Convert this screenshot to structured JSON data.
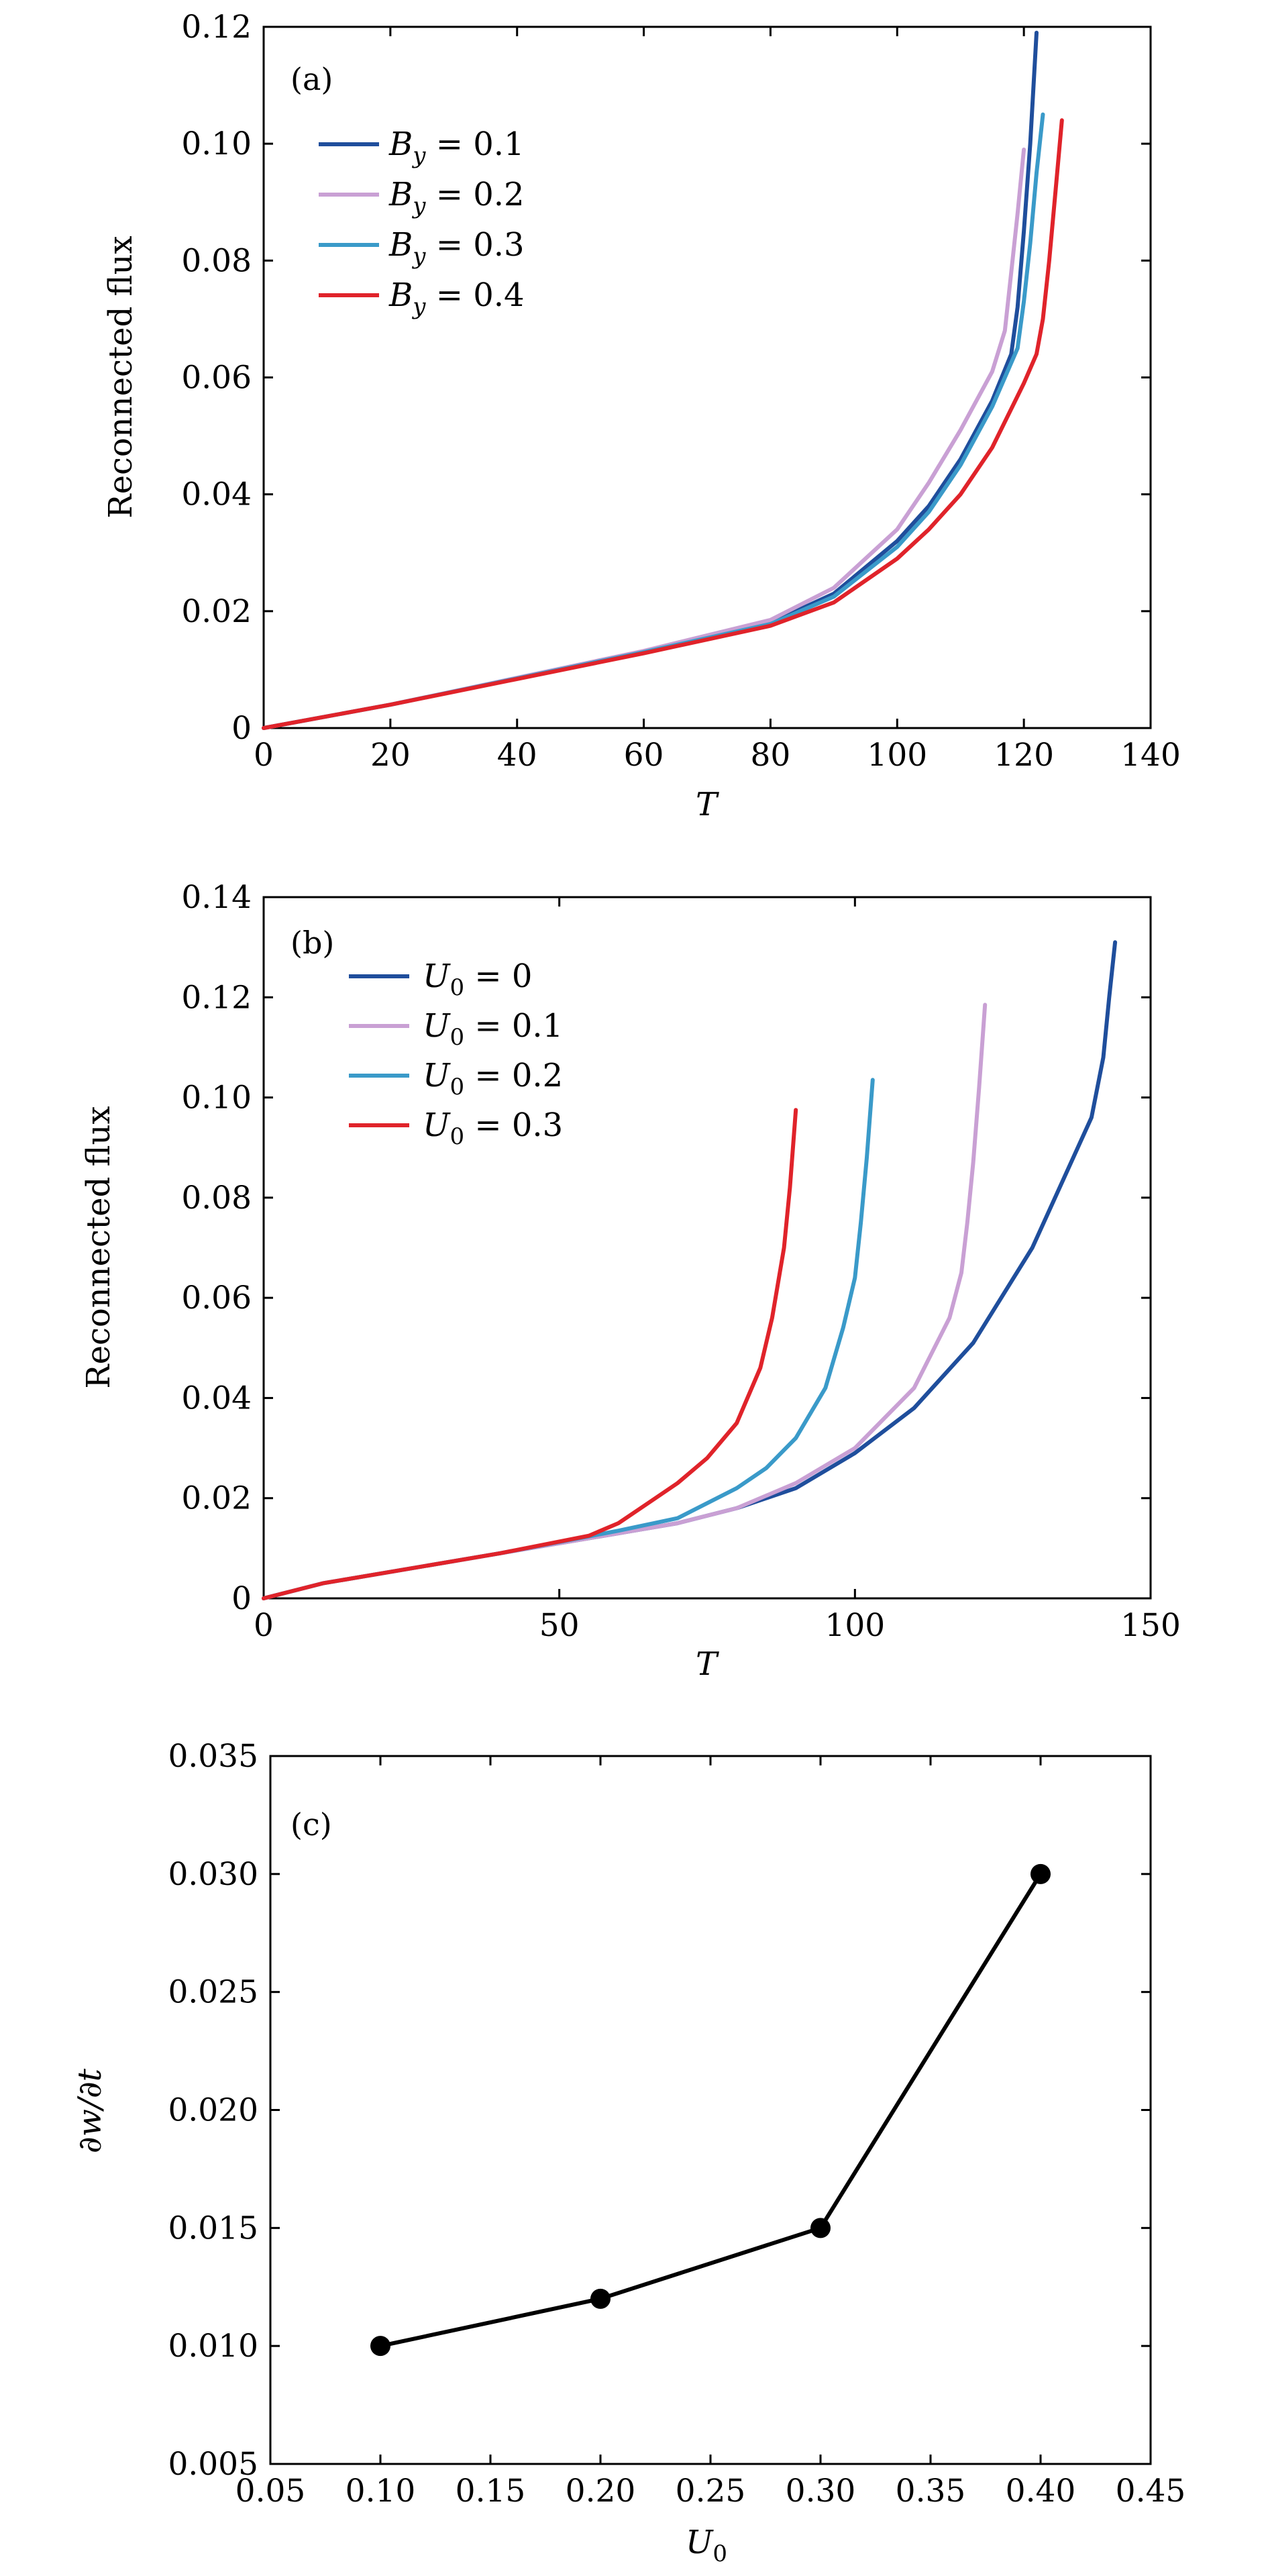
{
  "chart_data": [
    {
      "panel": "(a)",
      "type": "line",
      "xlabel": "T",
      "ylabel": "Reconnected flux",
      "xlim": [
        0,
        140
      ],
      "ylim": [
        0,
        0.12
      ],
      "xticks": [
        "0",
        "20",
        "40",
        "60",
        "80",
        "100",
        "120",
        "140"
      ],
      "yticks": [
        "0",
        "0.02",
        "0.04",
        "0.06",
        "0.08",
        "0.10",
        "0.12"
      ],
      "legend_position": "top-left",
      "series": [
        {
          "name": "B_y = 0.1",
          "label_main": "B",
          "label_sub": "y",
          "label_rest": " = 0.1",
          "color": "#1f4e9c",
          "x": [
            0,
            20,
            40,
            60,
            80,
            90,
            100,
            105,
            110,
            115,
            118,
            119,
            120,
            121,
            122
          ],
          "y": [
            0,
            0.004,
            0.0085,
            0.013,
            0.018,
            0.023,
            0.032,
            0.038,
            0.046,
            0.056,
            0.064,
            0.072,
            0.085,
            0.1,
            0.119
          ]
        },
        {
          "name": "B_y = 0.2",
          "label_main": "B",
          "label_sub": "y",
          "label_rest": " = 0.2",
          "color": "#c9a0d4",
          "x": [
            0,
            20,
            40,
            60,
            80,
            90,
            100,
            105,
            110,
            115,
            117,
            118,
            119,
            120
          ],
          "y": [
            0,
            0.004,
            0.0086,
            0.0132,
            0.0185,
            0.024,
            0.034,
            0.042,
            0.051,
            0.061,
            0.068,
            0.078,
            0.088,
            0.099
          ]
        },
        {
          "name": "B_y = 0.3",
          "label_main": "B",
          "label_sub": "y",
          "label_rest": " = 0.3",
          "color": "#3a9ac9",
          "x": [
            0,
            20,
            40,
            60,
            80,
            90,
            100,
            105,
            110,
            115,
            119,
            120,
            121,
            122,
            123
          ],
          "y": [
            0,
            0.004,
            0.0085,
            0.013,
            0.0178,
            0.0225,
            0.031,
            0.037,
            0.045,
            0.055,
            0.065,
            0.073,
            0.083,
            0.095,
            0.105
          ]
        },
        {
          "name": "B_y = 0.4",
          "label_main": "B",
          "label_sub": "y",
          "label_rest": " = 0.4",
          "color": "#e0232a",
          "x": [
            0,
            20,
            40,
            60,
            80,
            90,
            100,
            105,
            110,
            115,
            120,
            122,
            123,
            124,
            125,
            126
          ],
          "y": [
            0,
            0.004,
            0.0084,
            0.0128,
            0.0175,
            0.0215,
            0.029,
            0.034,
            0.04,
            0.048,
            0.059,
            0.064,
            0.07,
            0.08,
            0.092,
            0.104
          ]
        }
      ]
    },
    {
      "panel": "(b)",
      "type": "line",
      "xlabel": "T",
      "ylabel": "Reconnected flux",
      "xlim": [
        0,
        150
      ],
      "ylim": [
        0,
        0.14
      ],
      "xticks": [
        "0",
        "50",
        "100",
        "150"
      ],
      "yticks": [
        "0",
        "0.02",
        "0.04",
        "0.06",
        "0.08",
        "0.10",
        "0.12",
        "0.14"
      ],
      "legend_position": "top-left",
      "series": [
        {
          "name": "U_0 = 0",
          "label_main": "U",
          "label_sub": "0",
          "label_rest": " = 0",
          "color": "#1f4e9c",
          "x": [
            0,
            10,
            20,
            40,
            60,
            70,
            80,
            90,
            100,
            110,
            120,
            130,
            140,
            142,
            143,
            144
          ],
          "y": [
            0,
            0.003,
            0.005,
            0.009,
            0.013,
            0.015,
            0.018,
            0.022,
            0.029,
            0.038,
            0.051,
            0.07,
            0.096,
            0.108,
            0.12,
            0.131
          ]
        },
        {
          "name": "U_0 = 0.1",
          "label_main": "U",
          "label_sub": "0",
          "label_rest": " = 0.1",
          "color": "#c9a0d4",
          "x": [
            0,
            10,
            20,
            40,
            60,
            70,
            80,
            90,
            100,
            110,
            116,
            118,
            119,
            120,
            121,
            122
          ],
          "y": [
            0,
            0.003,
            0.005,
            0.009,
            0.013,
            0.015,
            0.018,
            0.023,
            0.03,
            0.042,
            0.056,
            0.065,
            0.075,
            0.087,
            0.102,
            0.1185
          ]
        },
        {
          "name": "U_0 = 0.2",
          "label_main": "U",
          "label_sub": "0",
          "label_rest": " = 0.2",
          "color": "#3a9ac9",
          "x": [
            0,
            10,
            20,
            40,
            60,
            70,
            80,
            85,
            90,
            95,
            98,
            100,
            101,
            102,
            103
          ],
          "y": [
            0,
            0.003,
            0.005,
            0.009,
            0.0135,
            0.016,
            0.022,
            0.026,
            0.032,
            0.042,
            0.054,
            0.064,
            0.075,
            0.088,
            0.1035
          ]
        },
        {
          "name": "U_0 = 0.3",
          "label_main": "U",
          "label_sub": "0",
          "label_rest": " = 0.3",
          "color": "#e0232a",
          "x": [
            0,
            10,
            20,
            40,
            55,
            60,
            65,
            70,
            75,
            80,
            84,
            86,
            88,
            89,
            90
          ],
          "y": [
            0,
            0.003,
            0.005,
            0.009,
            0.0125,
            0.015,
            0.019,
            0.023,
            0.028,
            0.035,
            0.046,
            0.056,
            0.07,
            0.082,
            0.0975
          ]
        }
      ]
    },
    {
      "panel": "(c)",
      "type": "line",
      "markers": true,
      "xlabel": "U_0",
      "xlabel_main": "U",
      "xlabel_sub": "0",
      "ylabel": "∂w/∂t",
      "xlim": [
        0.05,
        0.45
      ],
      "ylim": [
        0.005,
        0.035
      ],
      "xticks": [
        "0.05",
        "0.10",
        "0.15",
        "0.20",
        "0.25",
        "0.30",
        "0.35",
        "0.40",
        "0.45"
      ],
      "yticks": [
        "0.005",
        "0.010",
        "0.015",
        "0.020",
        "0.025",
        "0.030",
        "0.035"
      ],
      "series": [
        {
          "color": "#000000",
          "x": [
            0.1,
            0.2,
            0.3,
            0.4
          ],
          "y": [
            0.01,
            0.012,
            0.015,
            0.03
          ]
        }
      ]
    }
  ]
}
